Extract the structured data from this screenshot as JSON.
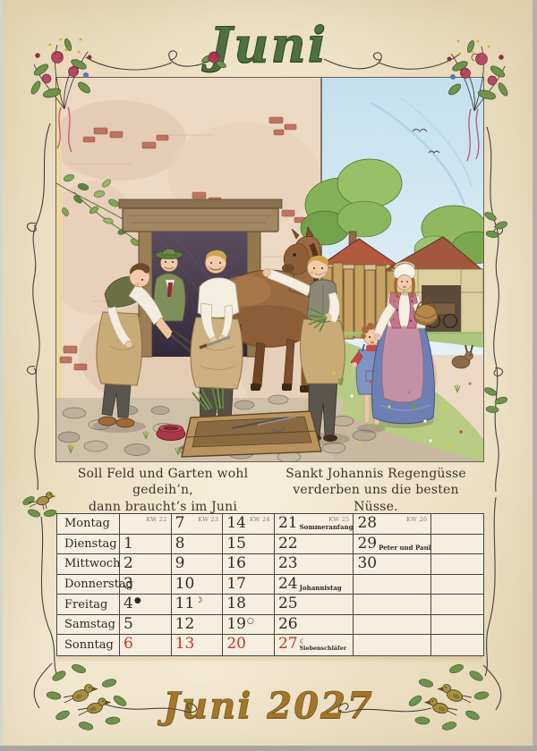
{
  "page": {
    "title": "Juni",
    "footer_title": "Juni 2027"
  },
  "proverb": {
    "left_line1": "Soll Feld und Garten wohl gedeih’n,",
    "left_line2": "dann braucht’s im Juni Sonnenschein.",
    "right_line1": "Sankt Johannis Regengüsse",
    "right_line2": "verderben uns die besten Nüsse."
  },
  "calendar": {
    "moon_symbols": {
      "new": "●",
      "first_quarter": "☽",
      "full": "○",
      "last_quarter": "☾"
    },
    "day_rows": [
      {
        "day": "Montag",
        "cells": [
          {
            "kw": "KW 22"
          },
          {
            "date": "7",
            "kw": "KW 23"
          },
          {
            "date": "14",
            "kw": "KW 24"
          },
          {
            "date": "21",
            "kw": "KW 25",
            "note": "Sommeranfang"
          },
          {
            "date": "28",
            "kw": "KW 26"
          },
          {}
        ]
      },
      {
        "day": "Dienstag",
        "cells": [
          {
            "date": "1"
          },
          {
            "date": "8"
          },
          {
            "date": "15"
          },
          {
            "date": "22"
          },
          {
            "date": "29",
            "note": "Peter und Paul"
          },
          {}
        ]
      },
      {
        "day": "Mittwoch",
        "cells": [
          {
            "date": "2"
          },
          {
            "date": "9"
          },
          {
            "date": "16"
          },
          {
            "date": "23"
          },
          {
            "date": "30"
          },
          {}
        ]
      },
      {
        "day": "Donnerstag",
        "cells": [
          {
            "date": "3"
          },
          {
            "date": "10"
          },
          {
            "date": "17"
          },
          {
            "date": "24",
            "note": "Johannistag"
          },
          {},
          {}
        ]
      },
      {
        "day": "Freitag",
        "cells": [
          {
            "date": "4",
            "moon": "new"
          },
          {
            "date": "11",
            "moon": "first_quarter"
          },
          {
            "date": "18"
          },
          {
            "date": "25"
          },
          {},
          {}
        ]
      },
      {
        "day": "Samstag",
        "cells": [
          {
            "date": "5"
          },
          {
            "date": "12"
          },
          {
            "date": "19",
            "moon": "full"
          },
          {
            "date": "26"
          },
          {},
          {}
        ]
      },
      {
        "day": "Sonntag",
        "sunday": true,
        "cells": [
          {
            "date": "6"
          },
          {
            "date": "13"
          },
          {
            "date": "20"
          },
          {
            "date": "27",
            "moon": "last_quarter",
            "note": "Siebenschläfer",
            "stacked": true
          },
          {},
          {}
        ]
      }
    ]
  },
  "colors": {
    "title_green": "#4f7040",
    "footer_gold": "#a3762c",
    "sunday_red": "#c23527",
    "week_label_gray": "#8a8174",
    "ink": "#4a443b",
    "parchment": "#f1e7cf"
  }
}
